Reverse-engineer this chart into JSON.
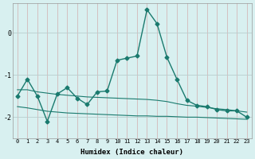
{
  "xlabel": "Humidex (Indice chaleur)",
  "x": [
    0,
    1,
    2,
    3,
    4,
    5,
    6,
    7,
    8,
    9,
    10,
    11,
    12,
    13,
    14,
    15,
    16,
    17,
    18,
    19,
    20,
    21,
    22,
    23
  ],
  "main_line": [
    -1.5,
    -1.1,
    -1.5,
    -2.1,
    -1.45,
    -1.3,
    -1.55,
    -1.7,
    -1.4,
    -1.38,
    -0.65,
    -0.6,
    -0.55,
    0.55,
    0.22,
    -0.58,
    -1.1,
    -1.6,
    -1.72,
    -1.75,
    -1.82,
    -1.85,
    -1.85,
    -2.0
  ],
  "upper_line": [
    -1.35,
    -1.35,
    -1.4,
    -1.43,
    -1.46,
    -1.48,
    -1.5,
    -1.52,
    -1.53,
    -1.54,
    -1.55,
    -1.56,
    -1.57,
    -1.58,
    -1.6,
    -1.63,
    -1.68,
    -1.72,
    -1.74,
    -1.77,
    -1.8,
    -1.82,
    -1.85,
    -1.88
  ],
  "lower_line": [
    -1.75,
    -1.78,
    -1.82,
    -1.86,
    -1.88,
    -1.9,
    -1.91,
    -1.92,
    -1.93,
    -1.94,
    -1.95,
    -1.96,
    -1.97,
    -1.97,
    -1.98,
    -1.98,
    -1.99,
    -2.0,
    -2.0,
    -2.01,
    -2.02,
    -2.03,
    -2.04,
    -2.05
  ],
  "line_color": "#1a7a6e",
  "bg_color": "#d8f0f0",
  "grid_color_major": "#b8cece",
  "grid_color_minor": "#c8dede",
  "ylim": [
    -2.5,
    0.7
  ],
  "yticks": [
    -2,
    -1,
    0
  ],
  "xticks": [
    0,
    1,
    2,
    3,
    4,
    5,
    6,
    7,
    8,
    9,
    10,
    11,
    12,
    13,
    14,
    15,
    16,
    17,
    18,
    19,
    20,
    21,
    22,
    23
  ],
  "marker": "D",
  "markersize": 2.5,
  "linewidth_main": 1.0,
  "linewidth_band": 0.8
}
